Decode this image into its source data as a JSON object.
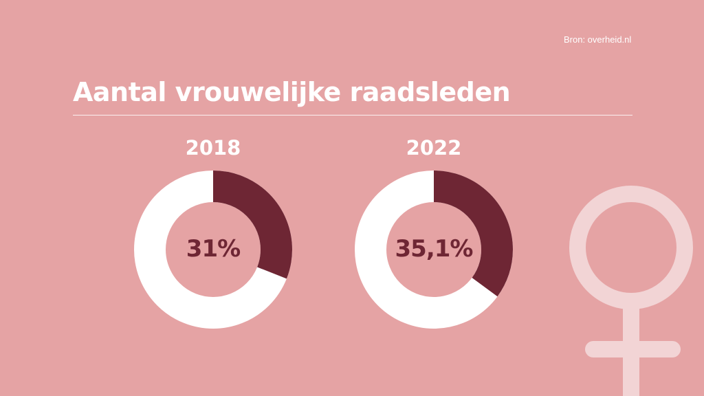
{
  "source": "Bron: overheid.nl",
  "title": "Aantal vrouwelijke raadsleden",
  "colors": {
    "background": "#E5A3A4",
    "share": "#6E2634",
    "remainder": "#FFFFFF",
    "symbol": "#F2D4D5"
  },
  "icon": "female-symbol-icon",
  "chart_data": [
    {
      "type": "pie",
      "variant": "donut",
      "title": "2018",
      "value_label": "31%",
      "values": [
        31,
        69
      ]
    },
    {
      "type": "pie",
      "variant": "donut",
      "title": "2022",
      "value_label": "35,1%",
      "values": [
        35.1,
        64.9
      ]
    }
  ]
}
